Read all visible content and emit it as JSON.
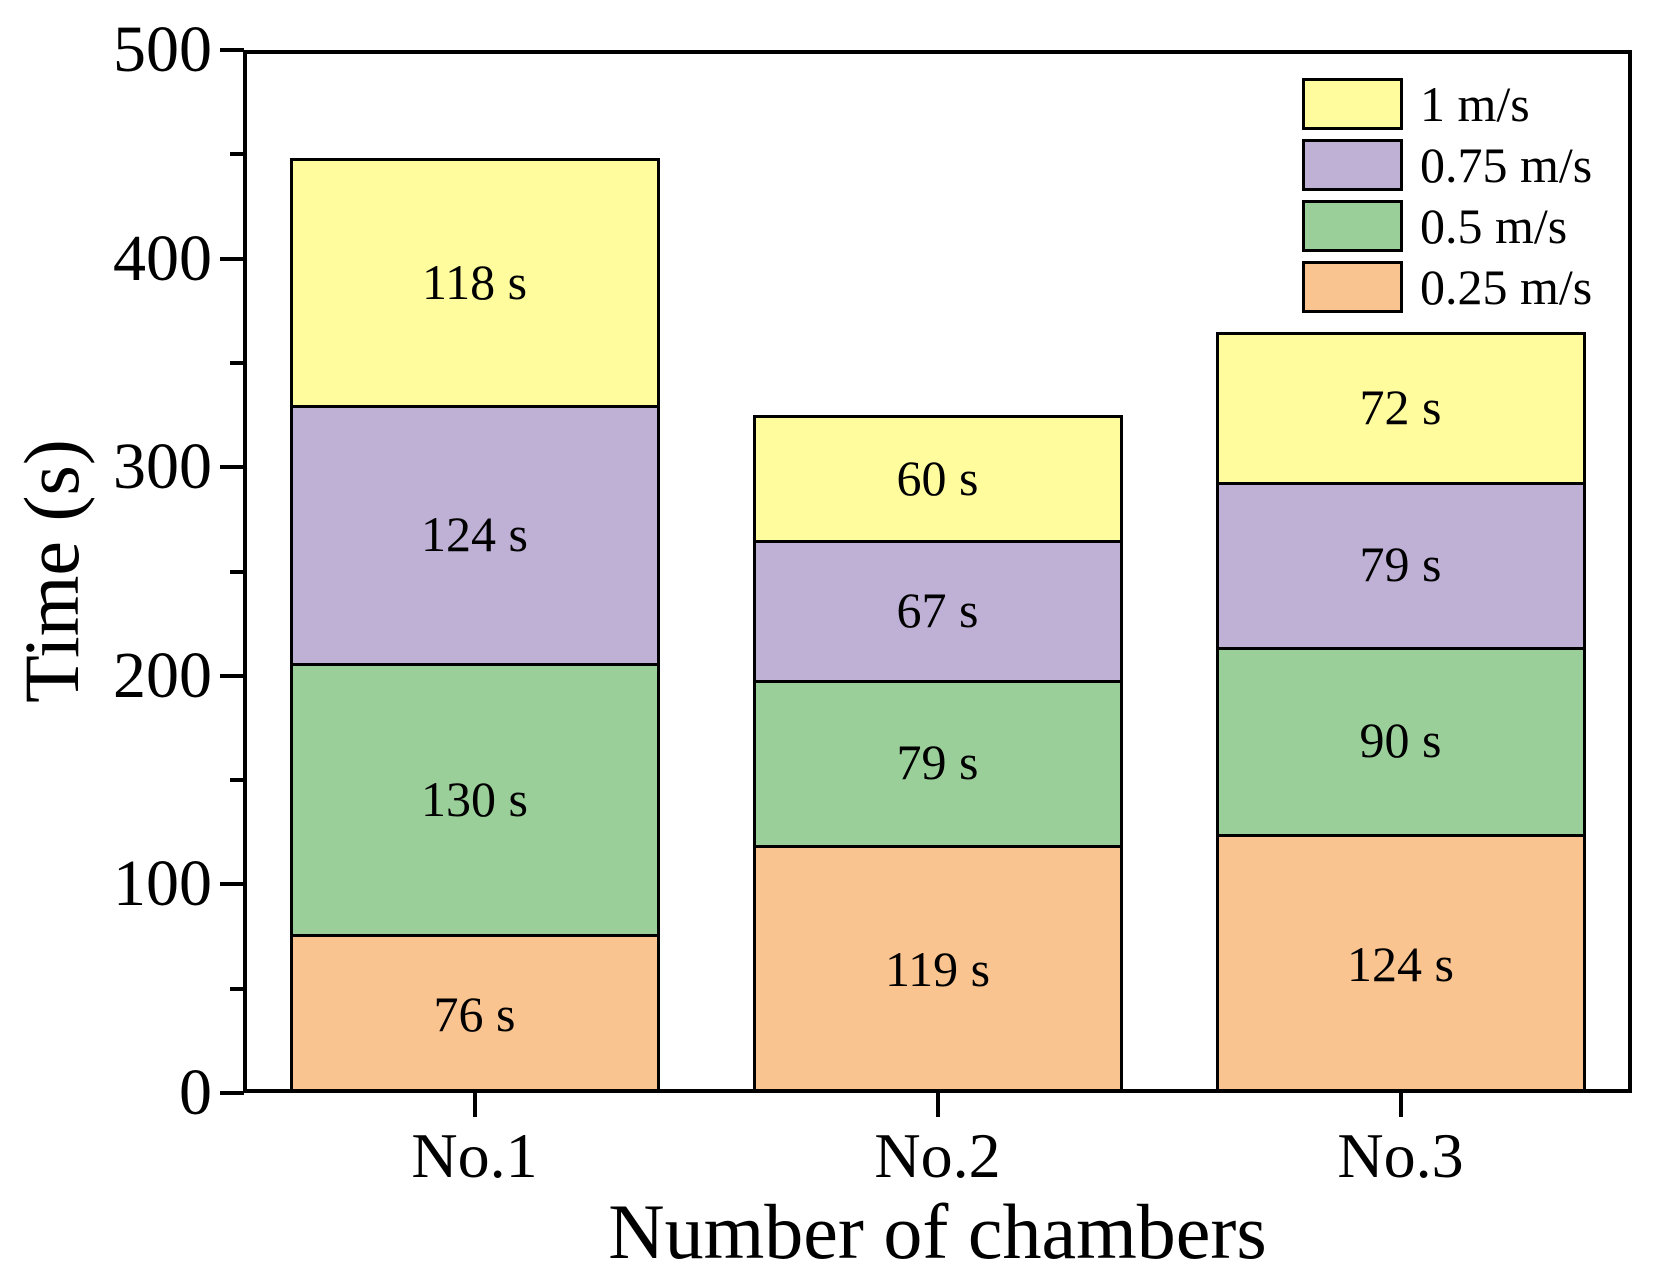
{
  "figure": {
    "background": "#ffffff",
    "axis_color": "#000000"
  },
  "chart_data": {
    "type": "bar",
    "stacked": true,
    "title": "",
    "xlabel": "Number of chambers",
    "ylabel": "Time (s)",
    "categories": [
      "No.1",
      "No.2",
      "No.3"
    ],
    "series": [
      {
        "name": "0.25 m/s",
        "color": "#FAC490",
        "values": [
          76,
          119,
          124
        ],
        "labels": [
          "76 s",
          "119 s",
          "124 s"
        ]
      },
      {
        "name": "0.5 m/s",
        "color": "#9ACF9A",
        "values": [
          130,
          79,
          90
        ],
        "labels": [
          "130 s",
          "79 s",
          "90 s"
        ]
      },
      {
        "name": "0.75 m/s",
        "color": "#BFB0D6",
        "values": [
          124,
          67,
          79
        ],
        "labels": [
          "124 s",
          "67 s",
          "79 s"
        ]
      },
      {
        "name": "1 m/s",
        "color": "#FFFC9E",
        "values": [
          118,
          60,
          72
        ],
        "labels": [
          "118 s",
          "60 s",
          "72 s"
        ]
      }
    ],
    "totals": [
      448,
      325,
      365
    ],
    "legend": {
      "position": "top-right",
      "entries": [
        "1 m/s",
        "0.75 m/s",
        "0.5 m/s",
        "0.25 m/s"
      ]
    },
    "ylim": [
      0,
      500
    ],
    "yticks_major": [
      0,
      100,
      200,
      300,
      400,
      500
    ],
    "yticks_minor": [
      50,
      150,
      250,
      350,
      450
    ],
    "grid": false
  }
}
